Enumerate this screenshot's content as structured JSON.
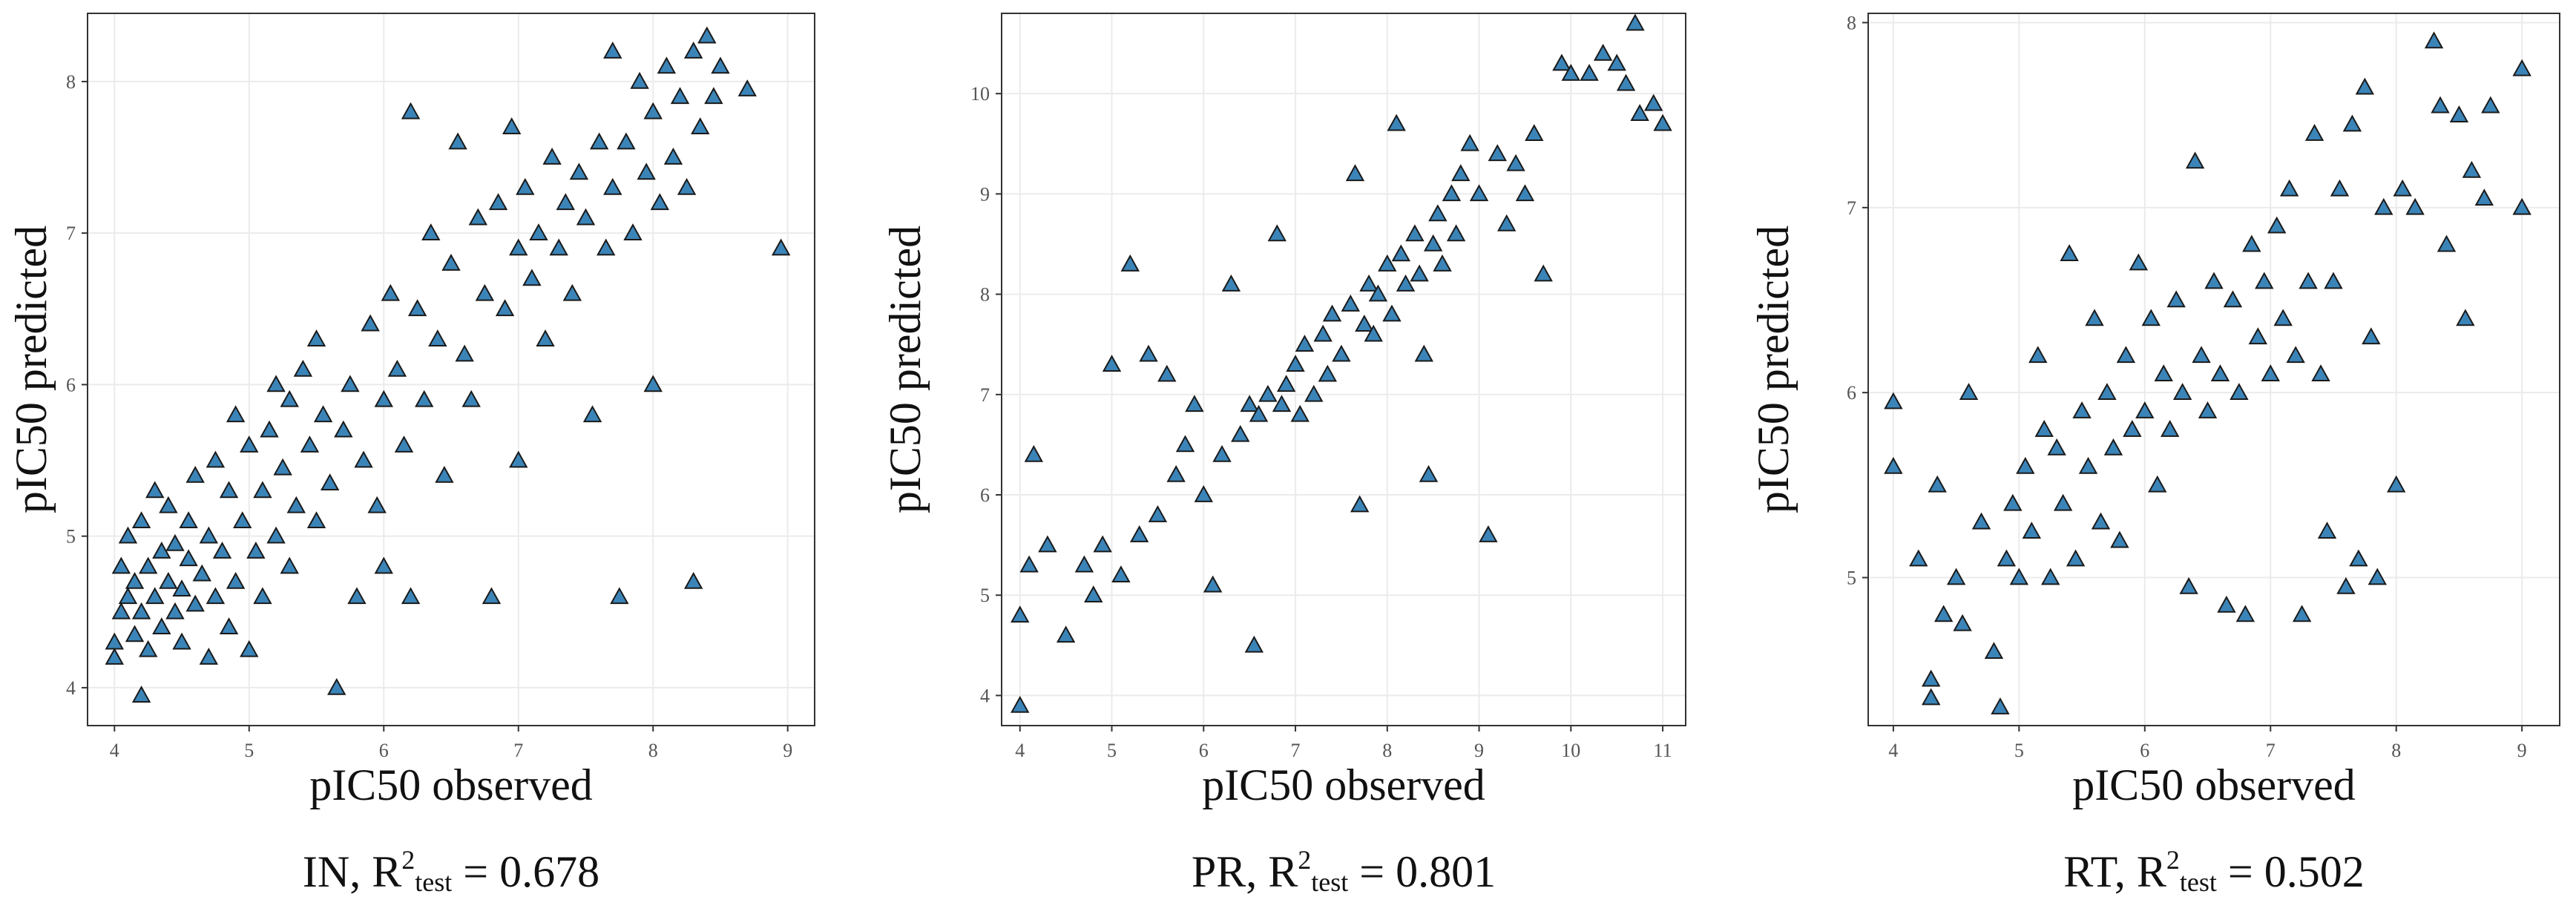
{
  "colors": {
    "point_fill": "#3b84b8",
    "point_stroke": "#1a1a1a",
    "grid": "#ebebeb",
    "panel_frame": "#333333"
  },
  "chart_data": [
    {
      "type": "scatter",
      "marker": "triangle",
      "xlabel": "pIC50 observed",
      "ylabel": "pIC50 predicted",
      "xlim": [
        3.8,
        9.2
      ],
      "ylim": [
        3.75,
        8.45
      ],
      "xticks": [
        4,
        5,
        6,
        7,
        8,
        9
      ],
      "yticks": [
        4,
        5,
        6,
        7,
        8
      ],
      "grid": true,
      "caption": {
        "prefix": "IN, R",
        "sup": "2",
        "sub": "test",
        "suffix": " = 0.678"
      },
      "points": [
        [
          4.0,
          4.2
        ],
        [
          4.0,
          4.3
        ],
        [
          4.05,
          4.5
        ],
        [
          4.05,
          4.8
        ],
        [
          4.1,
          4.6
        ],
        [
          4.1,
          5.0
        ],
        [
          4.15,
          4.35
        ],
        [
          4.15,
          4.7
        ],
        [
          4.2,
          3.95
        ],
        [
          4.2,
          4.5
        ],
        [
          4.2,
          5.1
        ],
        [
          4.25,
          4.8
        ],
        [
          4.25,
          4.25
        ],
        [
          4.3,
          4.6
        ],
        [
          4.3,
          5.3
        ],
        [
          4.35,
          4.9
        ],
        [
          4.35,
          4.4
        ],
        [
          4.4,
          4.7
        ],
        [
          4.4,
          5.2
        ],
        [
          4.45,
          4.5
        ],
        [
          4.45,
          4.95
        ],
        [
          4.5,
          4.3
        ],
        [
          4.5,
          4.65
        ],
        [
          4.55,
          5.1
        ],
        [
          4.55,
          4.85
        ],
        [
          4.6,
          4.55
        ],
        [
          4.6,
          5.4
        ],
        [
          4.65,
          4.75
        ],
        [
          4.7,
          4.2
        ],
        [
          4.7,
          5.0
        ],
        [
          4.75,
          4.6
        ],
        [
          4.75,
          5.5
        ],
        [
          4.8,
          4.9
        ],
        [
          4.85,
          4.4
        ],
        [
          4.85,
          5.3
        ],
        [
          4.9,
          4.7
        ],
        [
          4.9,
          5.8
        ],
        [
          4.95,
          5.1
        ],
        [
          5.0,
          4.25
        ],
        [
          5.0,
          5.6
        ],
        [
          5.05,
          4.9
        ],
        [
          5.1,
          5.3
        ],
        [
          5.1,
          4.6
        ],
        [
          5.15,
          5.7
        ],
        [
          5.2,
          5.0
        ],
        [
          5.2,
          6.0
        ],
        [
          5.25,
          5.45
        ],
        [
          5.3,
          4.8
        ],
        [
          5.3,
          5.9
        ],
        [
          5.35,
          5.2
        ],
        [
          5.4,
          6.1
        ],
        [
          5.45,
          5.6
        ],
        [
          5.5,
          5.1
        ],
        [
          5.5,
          6.3
        ],
        [
          5.55,
          5.8
        ],
        [
          5.6,
          5.35
        ],
        [
          5.65,
          4.0
        ],
        [
          5.7,
          5.7
        ],
        [
          5.75,
          6.0
        ],
        [
          5.8,
          4.6
        ],
        [
          5.85,
          5.5
        ],
        [
          5.9,
          6.4
        ],
        [
          5.95,
          5.2
        ],
        [
          6.0,
          5.9
        ],
        [
          6.0,
          4.8
        ],
        [
          6.05,
          6.6
        ],
        [
          6.1,
          6.1
        ],
        [
          6.15,
          5.6
        ],
        [
          6.2,
          7.8
        ],
        [
          6.2,
          4.6
        ],
        [
          6.25,
          6.5
        ],
        [
          6.3,
          5.9
        ],
        [
          6.35,
          7.0
        ],
        [
          6.4,
          6.3
        ],
        [
          6.45,
          5.4
        ],
        [
          6.5,
          6.8
        ],
        [
          6.55,
          7.6
        ],
        [
          6.6,
          6.2
        ],
        [
          6.65,
          5.9
        ],
        [
          6.7,
          7.1
        ],
        [
          6.75,
          6.6
        ],
        [
          6.8,
          4.6
        ],
        [
          6.85,
          7.2
        ],
        [
          6.9,
          6.5
        ],
        [
          6.95,
          7.7
        ],
        [
          7.0,
          6.9
        ],
        [
          7.0,
          5.5
        ],
        [
          7.05,
          7.3
        ],
        [
          7.1,
          6.7
        ],
        [
          7.15,
          7.0
        ],
        [
          7.2,
          6.3
        ],
        [
          7.25,
          7.5
        ],
        [
          7.3,
          6.9
        ],
        [
          7.35,
          7.2
        ],
        [
          7.4,
          6.6
        ],
        [
          7.45,
          7.4
        ],
        [
          7.5,
          7.1
        ],
        [
          7.55,
          5.8
        ],
        [
          7.6,
          7.6
        ],
        [
          7.65,
          6.9
        ],
        [
          7.7,
          8.2
        ],
        [
          7.7,
          7.3
        ],
        [
          7.75,
          4.6
        ],
        [
          7.8,
          7.6
        ],
        [
          7.85,
          7.0
        ],
        [
          7.9,
          8.0
        ],
        [
          7.95,
          7.4
        ],
        [
          8.0,
          6.0
        ],
        [
          8.0,
          7.8
        ],
        [
          8.05,
          7.2
        ],
        [
          8.1,
          8.1
        ],
        [
          8.15,
          7.5
        ],
        [
          8.2,
          7.9
        ],
        [
          8.25,
          7.3
        ],
        [
          8.3,
          4.7
        ],
        [
          8.3,
          8.2
        ],
        [
          8.35,
          7.7
        ],
        [
          8.4,
          8.3
        ],
        [
          8.45,
          7.9
        ],
        [
          8.5,
          8.1
        ],
        [
          8.7,
          7.95
        ],
        [
          8.95,
          6.9
        ]
      ]
    },
    {
      "type": "scatter",
      "marker": "triangle",
      "xlabel": "pIC50 observed",
      "ylabel": "pIC50 predicted",
      "xlim": [
        3.8,
        11.25
      ],
      "ylim": [
        3.7,
        10.8
      ],
      "xticks": [
        4,
        5,
        6,
        7,
        8,
        9,
        10,
        11
      ],
      "yticks": [
        4,
        5,
        6,
        7,
        8,
        9,
        10
      ],
      "grid": true,
      "caption": {
        "prefix": "PR, R",
        "sup": "2",
        "sub": "test",
        "suffix": " = 0.801"
      },
      "points": [
        [
          4.0,
          3.9
        ],
        [
          4.0,
          4.8
        ],
        [
          4.1,
          5.3
        ],
        [
          4.15,
          6.4
        ],
        [
          4.3,
          5.5
        ],
        [
          4.5,
          4.6
        ],
        [
          4.7,
          5.3
        ],
        [
          4.8,
          5.0
        ],
        [
          4.9,
          5.5
        ],
        [
          5.0,
          7.3
        ],
        [
          5.1,
          5.2
        ],
        [
          5.2,
          8.3
        ],
        [
          5.3,
          5.6
        ],
        [
          5.4,
          7.4
        ],
        [
          5.5,
          5.8
        ],
        [
          5.6,
          7.2
        ],
        [
          5.7,
          6.2
        ],
        [
          5.8,
          6.5
        ],
        [
          5.9,
          6.9
        ],
        [
          6.0,
          6.0
        ],
        [
          6.1,
          5.1
        ],
        [
          6.2,
          6.4
        ],
        [
          6.3,
          8.1
        ],
        [
          6.4,
          6.6
        ],
        [
          6.5,
          6.9
        ],
        [
          6.55,
          4.5
        ],
        [
          6.6,
          6.8
        ],
        [
          6.7,
          7.0
        ],
        [
          6.8,
          8.6
        ],
        [
          6.85,
          6.9
        ],
        [
          6.9,
          7.1
        ],
        [
          7.0,
          7.3
        ],
        [
          7.05,
          6.8
        ],
        [
          7.1,
          7.5
        ],
        [
          7.2,
          7.0
        ],
        [
          7.3,
          7.6
        ],
        [
          7.35,
          7.2
        ],
        [
          7.4,
          7.8
        ],
        [
          7.5,
          7.4
        ],
        [
          7.6,
          7.9
        ],
        [
          7.65,
          9.2
        ],
        [
          7.7,
          5.9
        ],
        [
          7.75,
          7.7
        ],
        [
          7.8,
          8.1
        ],
        [
          7.85,
          7.6
        ],
        [
          7.9,
          8.0
        ],
        [
          8.0,
          8.3
        ],
        [
          8.05,
          7.8
        ],
        [
          8.1,
          9.7
        ],
        [
          8.15,
          8.4
        ],
        [
          8.2,
          8.1
        ],
        [
          8.3,
          8.6
        ],
        [
          8.35,
          8.2
        ],
        [
          8.4,
          7.4
        ],
        [
          8.45,
          6.2
        ],
        [
          8.5,
          8.5
        ],
        [
          8.55,
          8.8
        ],
        [
          8.6,
          8.3
        ],
        [
          8.7,
          9.0
        ],
        [
          8.75,
          8.6
        ],
        [
          8.8,
          9.2
        ],
        [
          8.9,
          9.5
        ],
        [
          9.0,
          9.0
        ],
        [
          9.1,
          5.6
        ],
        [
          9.2,
          9.4
        ],
        [
          9.3,
          8.7
        ],
        [
          9.4,
          9.3
        ],
        [
          9.5,
          9.0
        ],
        [
          9.6,
          9.6
        ],
        [
          9.7,
          8.2
        ],
        [
          9.9,
          10.3
        ],
        [
          10.0,
          10.2
        ],
        [
          10.2,
          10.2
        ],
        [
          10.35,
          10.4
        ],
        [
          10.5,
          10.3
        ],
        [
          10.6,
          10.1
        ],
        [
          10.7,
          10.7
        ],
        [
          10.75,
          9.8
        ],
        [
          10.9,
          9.9
        ],
        [
          11.0,
          9.7
        ]
      ]
    },
    {
      "type": "scatter",
      "marker": "triangle",
      "xlabel": "pIC50 observed",
      "ylabel": "pIC50 predicted",
      "xlim": [
        3.8,
        9.3
      ],
      "ylim": [
        4.2,
        8.05
      ],
      "xticks": [
        4,
        5,
        6,
        7,
        8,
        9
      ],
      "yticks": [
        5,
        6,
        7,
        8
      ],
      "grid": true,
      "caption": {
        "prefix": "RT, R",
        "sup": "2",
        "sub": "test",
        "suffix": " = 0.502"
      },
      "points": [
        [
          4.0,
          5.95
        ],
        [
          4.0,
          5.6
        ],
        [
          4.2,
          5.1
        ],
        [
          4.3,
          4.45
        ],
        [
          4.3,
          4.35
        ],
        [
          4.35,
          5.5
        ],
        [
          4.4,
          4.8
        ],
        [
          4.5,
          5.0
        ],
        [
          4.55,
          4.75
        ],
        [
          4.6,
          6.0
        ],
        [
          4.7,
          5.3
        ],
        [
          4.8,
          4.6
        ],
        [
          4.85,
          4.3
        ],
        [
          4.9,
          5.1
        ],
        [
          4.95,
          5.4
        ],
        [
          5.0,
          5.0
        ],
        [
          5.05,
          5.6
        ],
        [
          5.1,
          5.25
        ],
        [
          5.15,
          6.2
        ],
        [
          5.2,
          5.8
        ],
        [
          5.25,
          5.0
        ],
        [
          5.3,
          5.7
        ],
        [
          5.35,
          5.4
        ],
        [
          5.4,
          6.75
        ],
        [
          5.45,
          5.1
        ],
        [
          5.5,
          5.9
        ],
        [
          5.55,
          5.6
        ],
        [
          5.6,
          6.4
        ],
        [
          5.65,
          5.3
        ],
        [
          5.7,
          6.0
        ],
        [
          5.75,
          5.7
        ],
        [
          5.8,
          5.2
        ],
        [
          5.85,
          6.2
        ],
        [
          5.9,
          5.8
        ],
        [
          5.95,
          6.7
        ],
        [
          6.0,
          5.9
        ],
        [
          6.05,
          6.4
        ],
        [
          6.1,
          5.5
        ],
        [
          6.15,
          6.1
        ],
        [
          6.2,
          5.8
        ],
        [
          6.25,
          6.5
        ],
        [
          6.3,
          6.0
        ],
        [
          6.35,
          4.95
        ],
        [
          6.4,
          7.25
        ],
        [
          6.45,
          6.2
        ],
        [
          6.5,
          5.9
        ],
        [
          6.55,
          6.6
        ],
        [
          6.6,
          6.1
        ],
        [
          6.65,
          4.85
        ],
        [
          6.7,
          6.5
        ],
        [
          6.75,
          6.0
        ],
        [
          6.8,
          4.8
        ],
        [
          6.85,
          6.8
        ],
        [
          6.9,
          6.3
        ],
        [
          6.95,
          6.6
        ],
        [
          7.0,
          6.1
        ],
        [
          7.05,
          6.9
        ],
        [
          7.1,
          6.4
        ],
        [
          7.15,
          7.1
        ],
        [
          7.2,
          6.2
        ],
        [
          7.25,
          4.8
        ],
        [
          7.3,
          6.6
        ],
        [
          7.35,
          7.4
        ],
        [
          7.4,
          6.1
        ],
        [
          7.45,
          5.25
        ],
        [
          7.5,
          6.6
        ],
        [
          7.55,
          7.1
        ],
        [
          7.6,
          4.95
        ],
        [
          7.65,
          7.45
        ],
        [
          7.7,
          5.1
        ],
        [
          7.75,
          7.65
        ],
        [
          7.8,
          6.3
        ],
        [
          7.85,
          5.0
        ],
        [
          7.9,
          7.0
        ],
        [
          8.0,
          5.5
        ],
        [
          8.05,
          7.1
        ],
        [
          8.15,
          7.0
        ],
        [
          8.3,
          7.9
        ],
        [
          8.35,
          7.55
        ],
        [
          8.4,
          6.8
        ],
        [
          8.5,
          7.5
        ],
        [
          8.55,
          6.4
        ],
        [
          8.6,
          7.2
        ],
        [
          8.7,
          7.05
        ],
        [
          8.75,
          7.55
        ],
        [
          9.0,
          7.75
        ],
        [
          9.0,
          7.0
        ]
      ]
    }
  ]
}
